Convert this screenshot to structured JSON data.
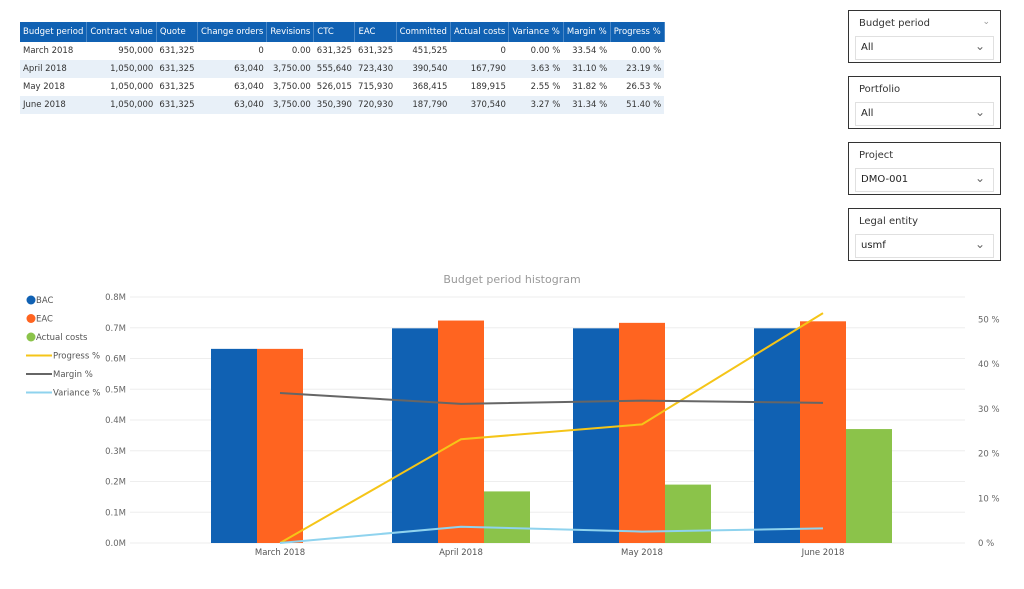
{
  "table": {
    "headers": [
      "Budget period",
      "Contract value",
      "Quote",
      "Change orders",
      "Revisions",
      "CTC",
      "EAC",
      "Committed",
      "Actual costs",
      "Variance %",
      "Margin %",
      "Progress %"
    ],
    "rows": [
      [
        "March 2018",
        "950,000",
        "631,325",
        "0",
        "0.00",
        "631,325",
        "631,325",
        "451,525",
        "0",
        "0.00 %",
        "33.54 %",
        "0.00 %"
      ],
      [
        "April 2018",
        "1,050,000",
        "631,325",
        "63,040",
        "3,750.00",
        "555,640",
        "723,430",
        "390,540",
        "167,790",
        "3.63 %",
        "31.10 %",
        "23.19 %"
      ],
      [
        "May 2018",
        "1,050,000",
        "631,325",
        "63,040",
        "3,750.00",
        "526,015",
        "715,930",
        "368,415",
        "189,915",
        "2.55 %",
        "31.82 %",
        "26.53 %"
      ],
      [
        "June 2018",
        "1,050,000",
        "631,325",
        "63,040",
        "3,750.00",
        "350,390",
        "720,930",
        "187,790",
        "370,540",
        "3.27 %",
        "31.34 %",
        "51.40 %"
      ]
    ]
  },
  "slicers": [
    {
      "label": "Budget period",
      "value": "All"
    },
    {
      "label": "Portfolio",
      "value": "All"
    },
    {
      "label": "Project",
      "value": "DMO-001"
    },
    {
      "label": "Legal entity",
      "value": "usmf"
    }
  ],
  "chart_data": {
    "type": "bar",
    "title": "Budget period histogram",
    "categories": [
      "March 2018",
      "April 2018",
      "May 2018",
      "June 2018"
    ],
    "series": [
      {
        "name": "BAC",
        "kind": "bar",
        "axis": "left",
        "color": "#1061b3",
        "values": [
          631325,
          698115,
          698115,
          698115
        ]
      },
      {
        "name": "EAC",
        "kind": "bar",
        "axis": "left",
        "color": "#ff6420",
        "values": [
          631325,
          723430,
          715930,
          720930
        ]
      },
      {
        "name": "Actual costs",
        "kind": "bar",
        "axis": "left",
        "color": "#8bc34a",
        "values": [
          0,
          167790,
          189915,
          370540
        ]
      },
      {
        "name": "Progress %",
        "kind": "line",
        "axis": "right",
        "color": "#f5c518",
        "values": [
          0,
          23.19,
          26.53,
          51.4
        ]
      },
      {
        "name": "Margin %",
        "kind": "line",
        "axis": "right",
        "color": "#666666",
        "values": [
          33.54,
          31.1,
          31.82,
          31.34
        ]
      },
      {
        "name": "Variance %",
        "kind": "line",
        "axis": "right",
        "color": "#8fd3ee",
        "values": [
          0,
          3.63,
          2.55,
          3.27
        ]
      }
    ],
    "yleft": {
      "ticks": [
        "0.0M",
        "0.1M",
        "0.2M",
        "0.3M",
        "0.4M",
        "0.5M",
        "0.6M",
        "0.7M",
        "0.8M"
      ],
      "range": [
        0,
        800000
      ]
    },
    "yright": {
      "ticks": [
        "0 %",
        "10 %",
        "20 %",
        "30 %",
        "40 %",
        "50 %"
      ],
      "range": [
        0,
        55
      ]
    },
    "legend": "left",
    "grid": true
  }
}
